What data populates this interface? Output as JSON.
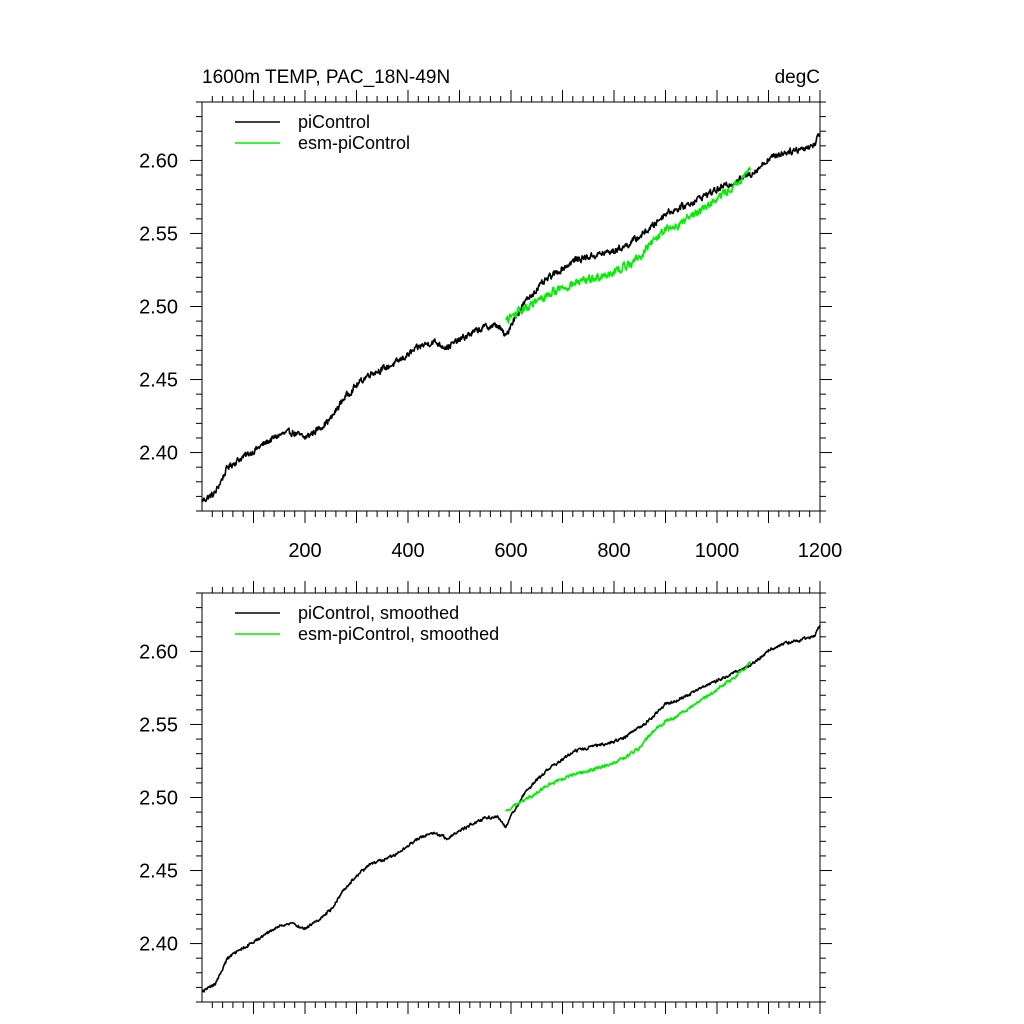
{
  "chart_data": [
    {
      "type": "line",
      "title": "1600m TEMP, PAC_18N-49N",
      "units": "degC",
      "xlim": [
        0,
        1200
      ],
      "ylim": [
        2.36,
        2.64
      ],
      "x_ticks": [
        200,
        400,
        600,
        800,
        1000,
        1200
      ],
      "x_tick_labels": [
        "200",
        "400",
        "600",
        "800",
        "1000",
        "1200"
      ],
      "y_ticks": [
        2.4,
        2.45,
        2.5,
        2.55,
        2.6
      ],
      "y_tick_labels": [
        "2.40",
        "2.45",
        "2.50",
        "2.55",
        "2.60"
      ],
      "grid": false,
      "legend_position": "top-left",
      "series": [
        {
          "name": "piControl",
          "color": "#000000",
          "x": [
            0,
            25,
            50,
            75,
            100,
            125,
            150,
            175,
            200,
            225,
            250,
            275,
            300,
            325,
            350,
            375,
            400,
            425,
            450,
            475,
            500,
            525,
            550,
            575,
            590,
            600,
            625,
            650,
            675,
            700,
            725,
            750,
            775,
            800,
            825,
            850,
            875,
            900,
            925,
            950,
            975,
            1000,
            1025,
            1050,
            1075,
            1100,
            1125,
            1150,
            1175,
            1190,
            1200
          ],
          "y": [
            2.367,
            2.372,
            2.39,
            2.396,
            2.401,
            2.407,
            2.412,
            2.414,
            2.41,
            2.416,
            2.423,
            2.437,
            2.446,
            2.454,
            2.457,
            2.461,
            2.467,
            2.473,
            2.476,
            2.472,
            2.477,
            2.482,
            2.486,
            2.487,
            2.479,
            2.488,
            2.502,
            2.512,
            2.52,
            2.526,
            2.532,
            2.534,
            2.536,
            2.538,
            2.542,
            2.548,
            2.555,
            2.564,
            2.567,
            2.571,
            2.576,
            2.58,
            2.584,
            2.588,
            2.593,
            2.601,
            2.605,
            2.607,
            2.609,
            2.611,
            2.62
          ],
          "noise": 0.0035
        },
        {
          "name": "esm-piControl",
          "color": "#00ee00",
          "x": [
            590,
            600,
            625,
            650,
            675,
            700,
            725,
            750,
            775,
            800,
            825,
            850,
            875,
            900,
            925,
            950,
            975,
            1000,
            1025,
            1050,
            1065
          ],
          "y": [
            2.49,
            2.493,
            2.498,
            2.503,
            2.509,
            2.513,
            2.516,
            2.518,
            2.521,
            2.524,
            2.528,
            2.534,
            2.545,
            2.552,
            2.556,
            2.562,
            2.568,
            2.574,
            2.58,
            2.587,
            2.593
          ],
          "noise": 0.0045
        }
      ]
    },
    {
      "type": "line",
      "xlim": [
        0,
        1200
      ],
      "ylim": [
        2.36,
        2.64
      ],
      "x_ticks": [
        200,
        400,
        600,
        800,
        1000,
        1200
      ],
      "y_ticks": [
        2.4,
        2.45,
        2.5,
        2.55,
        2.6
      ],
      "y_tick_labels": [
        "2.40",
        "2.45",
        "2.50",
        "2.55",
        "2.60"
      ],
      "grid": false,
      "legend_position": "top-left",
      "series": [
        {
          "name": "piControl, smoothed",
          "color": "#000000",
          "x": [
            0,
            25,
            50,
            75,
            100,
            125,
            150,
            175,
            200,
            225,
            250,
            275,
            300,
            325,
            350,
            375,
            400,
            425,
            450,
            475,
            500,
            525,
            550,
            575,
            590,
            600,
            625,
            650,
            675,
            700,
            725,
            750,
            775,
            800,
            825,
            850,
            875,
            900,
            925,
            950,
            975,
            1000,
            1025,
            1050,
            1075,
            1100,
            1125,
            1150,
            1175,
            1190,
            1200
          ],
          "y": [
            2.367,
            2.372,
            2.39,
            2.396,
            2.401,
            2.407,
            2.412,
            2.414,
            2.41,
            2.416,
            2.423,
            2.437,
            2.446,
            2.454,
            2.457,
            2.461,
            2.467,
            2.473,
            2.476,
            2.472,
            2.477,
            2.482,
            2.486,
            2.487,
            2.479,
            2.488,
            2.502,
            2.512,
            2.52,
            2.526,
            2.532,
            2.534,
            2.536,
            2.538,
            2.542,
            2.548,
            2.555,
            2.564,
            2.567,
            2.571,
            2.576,
            2.58,
            2.584,
            2.588,
            2.593,
            2.601,
            2.605,
            2.607,
            2.609,
            2.611,
            2.618
          ],
          "noise": 0.0016
        },
        {
          "name": "esm-piControl, smoothed",
          "color": "#00ee00",
          "x": [
            590,
            600,
            625,
            650,
            675,
            700,
            725,
            750,
            775,
            800,
            825,
            850,
            875,
            900,
            925,
            950,
            975,
            1000,
            1025,
            1050,
            1065
          ],
          "y": [
            2.49,
            2.493,
            2.498,
            2.503,
            2.509,
            2.513,
            2.516,
            2.518,
            2.521,
            2.524,
            2.528,
            2.534,
            2.545,
            2.552,
            2.556,
            2.562,
            2.568,
            2.574,
            2.58,
            2.587,
            2.593
          ],
          "noise": 0.0018
        }
      ]
    }
  ]
}
